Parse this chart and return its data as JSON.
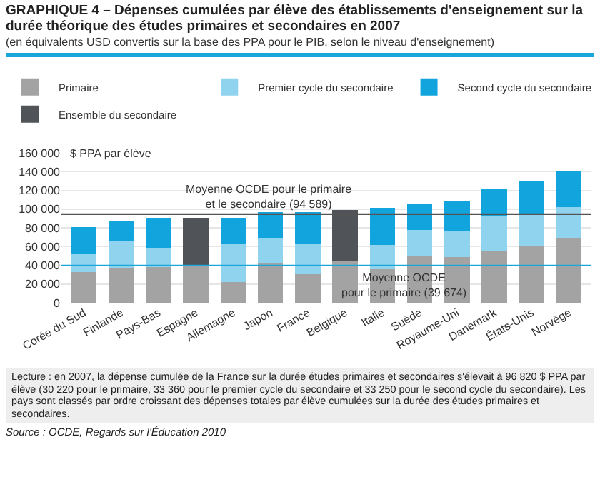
{
  "chart_data": {
    "type": "bar",
    "stacked": true,
    "title": "GRAPHIQUE 4 – Dépenses cumulées par élève des établissements d'enseignement sur la durée théorique des études primaires et secondaires en 2007",
    "subtitle": "(en équivalents USD convertis sur la base des PPA pour le PIB, selon le niveau d'enseignement)",
    "ylabel": "$ PPA par élève",
    "categories": [
      "Corée du Sud",
      "Finlande",
      "Pays-Bas",
      "Espagne",
      "Allemagne",
      "Japon",
      "France",
      "Belgique",
      "Italie",
      "Suède",
      "Royaume-Uni",
      "Danemark",
      "États-Unis",
      "Norvège"
    ],
    "series": [
      {
        "name": "Primaire",
        "color": "#a3a3a3",
        "values": [
          33000,
          37000,
          38000,
          40000,
          22000,
          43000,
          30220,
          45000,
          36000,
          50000,
          49000,
          55000,
          61000,
          69000
        ]
      },
      {
        "name": "Premier cycle du secondaire",
        "color": "#8fd3ee",
        "values": [
          19000,
          29000,
          21000,
          null,
          41000,
          26000,
          33360,
          null,
          26000,
          28000,
          28000,
          37000,
          33000,
          33000
        ]
      },
      {
        "name": "Second cycle du secondaire",
        "color": "#12a5dd",
        "values": [
          29000,
          22000,
          32000,
          null,
          28000,
          28000,
          33250,
          null,
          39000,
          27000,
          31000,
          30000,
          36000,
          39000
        ]
      },
      {
        "name": "Ensemble du secondaire",
        "color": "#505358",
        "values": [
          null,
          null,
          null,
          51000,
          null,
          null,
          null,
          54000,
          null,
          null,
          null,
          null,
          null,
          null
        ]
      }
    ],
    "ylim": [
      0,
      160000
    ],
    "yticks": [
      0,
      {
        "value": 20000,
        "label": "20 000"
      },
      {
        "value": 40000,
        "label": "40 000"
      },
      {
        "value": 60000,
        "label": "60 000"
      },
      {
        "value": 80000,
        "label": "80 000"
      },
      {
        "value": 100000,
        "label": "100 000"
      },
      {
        "value": 120000,
        "label": "120 000"
      },
      {
        "value": 140000,
        "label": "140 000"
      },
      {
        "value": 160000,
        "label": "160 000"
      }
    ],
    "grid": "y",
    "legend": "top",
    "ref_lines": [
      {
        "axis": "y",
        "value": 94589,
        "label": "Moyenne OCDE pour le primaire et le secondaire (94 589)",
        "color": "#555555"
      },
      {
        "axis": "y",
        "value": 39674,
        "label": "Moyenne OCDE pour le primaire (39 674)",
        "color": "#1aa6d8"
      }
    ],
    "annotations": [
      "Lecture : en 2007, la dépense cumulée de la France sur la durée études primaires et secondaires s'élevait à 96 820 $ PPA par élève (30 220 pour le primaire, 33 360 pour le premier cycle du secondaire et 33 250 pour le second cycle du secondaire). Les pays sont classés par ordre croissant des dépenses totales par élève cumulées sur la durée des études primaires et secondaires.",
      "Source : OCDE, Regards sur l'Éducation 2010"
    ]
  }
}
